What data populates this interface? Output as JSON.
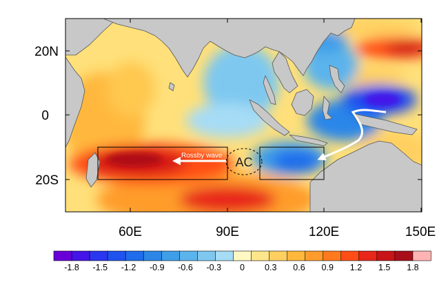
{
  "map": {
    "lon_range": [
      40,
      150
    ],
    "lat_range": [
      -30,
      30
    ],
    "lon_ticks": [
      {
        "value": 60,
        "label": "60E"
      },
      {
        "value": 90,
        "label": "90E"
      },
      {
        "value": 120,
        "label": "120E"
      },
      {
        "value": 150,
        "label": "150E"
      }
    ],
    "lat_ticks": [
      {
        "value": 20,
        "label": "20N"
      },
      {
        "value": 0,
        "label": "0"
      },
      {
        "value": -20,
        "label": "20S"
      }
    ],
    "land_color": "#c8c8c8",
    "boxes": [
      {
        "name": "west-box",
        "lon": [
          50,
          90
        ],
        "lat": [
          -20,
          -10
        ]
      },
      {
        "name": "east-box",
        "lon": [
          100,
          120
        ],
        "lat": [
          -20,
          -10
        ]
      }
    ],
    "anticyclone": {
      "label": "AC",
      "lon": 94,
      "lat": -14.5
    },
    "rossby_wave": {
      "label": "Rossby wave"
    }
  },
  "colorbar": {
    "colors": [
      "#6a00d8",
      "#4414e8",
      "#2a36f0",
      "#1f52ee",
      "#1f6cec",
      "#2c86e8",
      "#3f9ee8",
      "#5cb4ec",
      "#7ec8f0",
      "#a6dcf5",
      "#fff8c2",
      "#ffe68a",
      "#ffd060",
      "#ffb83c",
      "#ff9c2c",
      "#ff7a1e",
      "#ff4d17",
      "#e8261a",
      "#c81418",
      "#a80e1a",
      "#ffb4b4"
    ],
    "labels": [
      "-1.8",
      "-1.5",
      "-1.2",
      "-0.9",
      "-0.6",
      "-0.3",
      "0",
      "0.3",
      "0.6",
      "0.9",
      "1.2",
      "1.5",
      "1.8"
    ]
  }
}
